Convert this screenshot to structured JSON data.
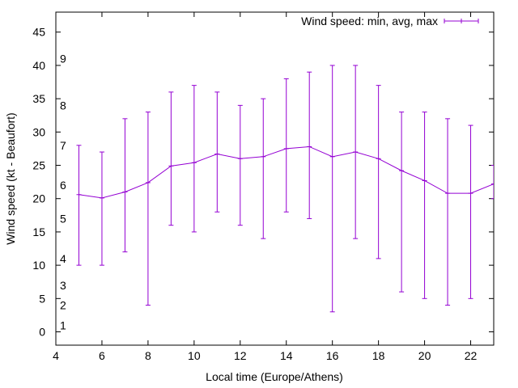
{
  "chart_data": {
    "type": "line",
    "xlabel": "Local time (Europe/Athens)",
    "ylabel": "Wind speed (kt - Beaufort)",
    "xlim": [
      4,
      23
    ],
    "ylim": [
      -2,
      48
    ],
    "x_ticks": [
      4,
      6,
      8,
      10,
      12,
      14,
      16,
      18,
      20,
      22
    ],
    "y_ticks": [
      0,
      5,
      10,
      15,
      20,
      25,
      30,
      35,
      40,
      45
    ],
    "beaufort_scale": [
      {
        "label": "1",
        "kt": 1
      },
      {
        "label": "2",
        "kt": 4
      },
      {
        "label": "3",
        "kt": 7
      },
      {
        "label": "4",
        "kt": 11
      },
      {
        "label": "5",
        "kt": 17
      },
      {
        "label": "6",
        "kt": 22
      },
      {
        "label": "7",
        "kt": 28
      },
      {
        "label": "8",
        "kt": 34
      },
      {
        "label": "9",
        "kt": 41
      }
    ],
    "legend_position": "top-right",
    "grid": false,
    "series": [
      {
        "name": "Wind speed: min, avg, max",
        "color": "#9400d3",
        "x": [
          5,
          6,
          7,
          8,
          9,
          10,
          11,
          12,
          13,
          14,
          15,
          16,
          17,
          18,
          19,
          20,
          21,
          22,
          23
        ],
        "avg": [
          20.6,
          20.1,
          21.0,
          22.4,
          24.9,
          25.4,
          26.7,
          26.0,
          26.3,
          27.5,
          27.8,
          26.3,
          27.0,
          26.0,
          24.2,
          22.7,
          20.8,
          20.8,
          22.2
        ],
        "min": [
          10,
          10,
          12,
          4,
          16,
          15,
          18,
          16,
          14,
          18,
          17,
          3,
          14,
          11,
          6,
          5,
          4,
          5,
          20
        ],
        "max": [
          28,
          27,
          32,
          33,
          36,
          37,
          36,
          34,
          35,
          38,
          39,
          40,
          40,
          37,
          33,
          33,
          32,
          31,
          25
        ]
      }
    ]
  }
}
